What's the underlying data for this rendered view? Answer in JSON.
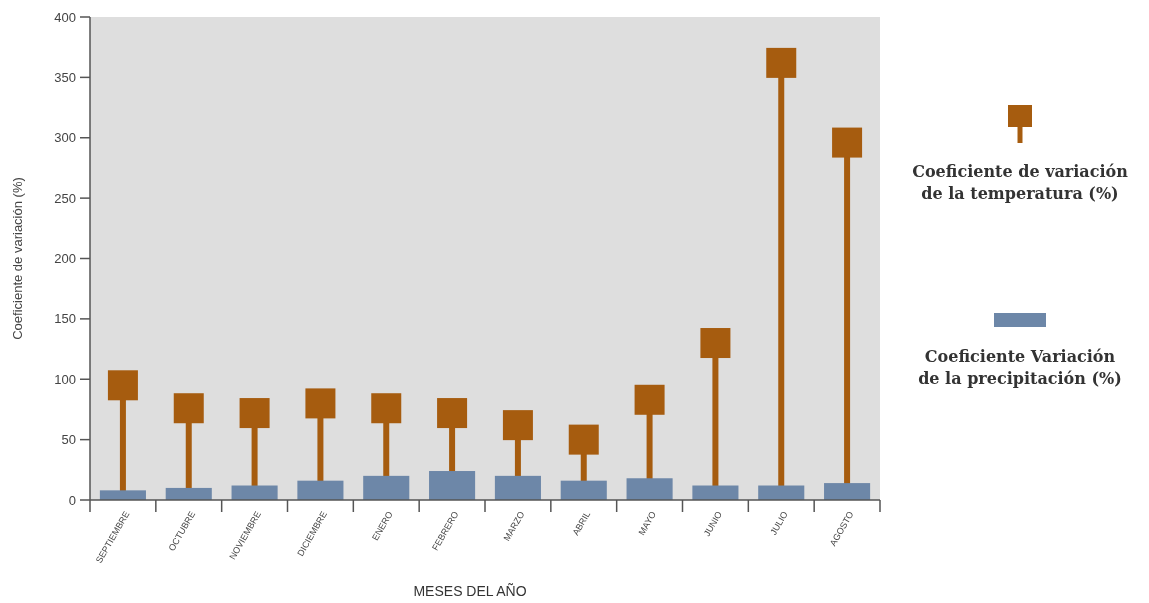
{
  "chart_data": {
    "type": "bar",
    "xlabel": "MESES DEL AÑO",
    "ylabel": "Coeficiente de variación (%)",
    "categories": [
      "SEPTIEMBRE",
      "OCTUBRE",
      "NOVIEMBRE",
      "DICIEMBRE",
      "ENERO",
      "FEBRERO",
      "MARZO",
      "ABRIL",
      "MAYO",
      "JUNIO",
      "JULIO",
      "AGOSTO"
    ],
    "series": [
      {
        "name": "Coeficiente de variación de la temperatura (%)",
        "type": "lollipop",
        "color": "#a65c0f",
        "values": [
          95,
          76,
          72,
          80,
          76,
          72,
          62,
          50,
          83,
          130,
          362,
          296
        ]
      },
      {
        "name": "Coeficiente Variación de la precipitación (%)",
        "color": "#6d87a8",
        "values": [
          8,
          10,
          12,
          16,
          20,
          24,
          20,
          16,
          18,
          12,
          12,
          14
        ]
      }
    ],
    "ylim": [
      0,
      400
    ],
    "yticks": [
      0,
      50,
      100,
      150,
      200,
      250,
      300,
      350,
      400
    ],
    "marker": "square",
    "legend": "right"
  }
}
